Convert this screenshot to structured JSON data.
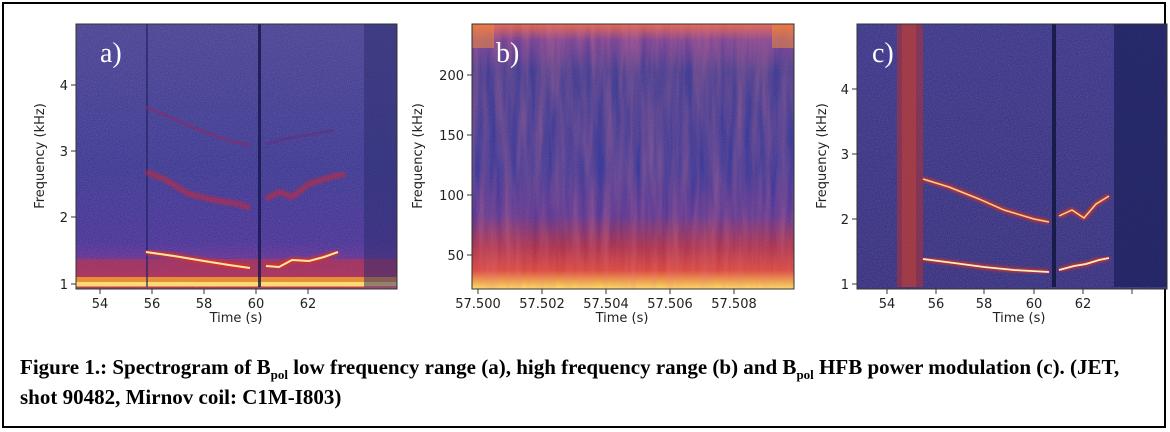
{
  "panels": [
    {
      "label": "a)",
      "xlabel": "Time (s)",
      "ylabel": "Frequency (kHz)",
      "xticks": [
        "54",
        "56",
        "58",
        "60",
        "62"
      ],
      "yticks": [
        "1",
        "2",
        "3",
        "4"
      ]
    },
    {
      "label": "b)",
      "xlabel": "Time (s)",
      "ylabel": "Frequency (kHz)",
      "xticks": [
        "57.500",
        "57.502",
        "57.504",
        "57.506",
        "57.508"
      ],
      "yticks": [
        "50",
        "100",
        "150",
        "200"
      ]
    },
    {
      "label": "c)",
      "xlabel": "Time (s)",
      "ylabel": "Frequency (kHz)",
      "xticks": [
        "54",
        "56",
        "58",
        "60",
        "62"
      ],
      "yticks": [
        "1",
        "2",
        "3",
        "4"
      ]
    }
  ],
  "caption": {
    "prefix": "Figure 1.: Spectrogram of B",
    "sub1": "pol",
    "mid1": " low frequency range (a), high frequency range (b) and B",
    "sub2": "pol",
    "mid2": " HFB power modulation (c). (JET, shot 90482, Mirnov coil: C1M-I803)"
  },
  "colors": {
    "background": "#2a2f7a",
    "mode_line": "#ffe89a",
    "mode_glow": "#d8322a",
    "lf_band": "#e25a2c"
  }
}
